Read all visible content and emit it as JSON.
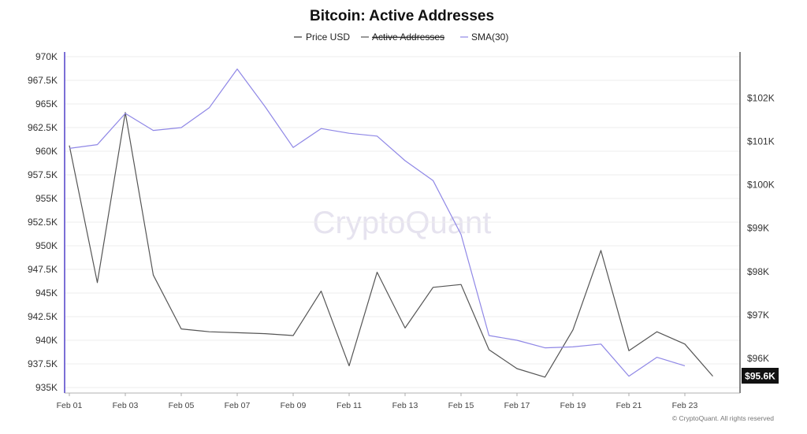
{
  "chart_data": {
    "type": "line",
    "title": "Bitcoin: Active Addresses",
    "legend": [
      "Price USD",
      "Active Addresses",
      "SMA(30)"
    ],
    "x_labels": [
      "Feb 01",
      "Feb 03",
      "Feb 05",
      "Feb 07",
      "Feb 09",
      "Feb 11",
      "Feb 13",
      "Feb 15",
      "Feb 17",
      "Feb 19",
      "Feb 21",
      "Feb 23"
    ],
    "left_axis": {
      "ylim": [
        935000,
        970000
      ],
      "ticks": [
        935000,
        937500,
        940000,
        942500,
        945000,
        947500,
        950000,
        952500,
        955000,
        957500,
        960000,
        962500,
        965000,
        967500,
        970000
      ],
      "tick_labels": [
        "935K",
        "937.5K",
        "940K",
        "942.5K",
        "945K",
        "947.5K",
        "950K",
        "952.5K",
        "955K",
        "957.5K",
        "960K",
        "962.5K",
        "965K",
        "967.5K",
        "970K"
      ]
    },
    "right_axis": {
      "ylim": [
        95330,
        102950
      ],
      "ticks": [
        96000,
        97000,
        98000,
        99000,
        100000,
        101000,
        102000
      ],
      "tick_labels": [
        "$96K",
        "$97K",
        "$98K",
        "$99K",
        "$100K",
        "$101K",
        "$102K"
      ],
      "last_value_label": "$95.6K"
    },
    "series": [
      {
        "name": "Active Addresses",
        "axis": "left",
        "color": "#555555",
        "x": [
          1,
          2,
          3,
          4,
          5,
          6,
          7,
          8,
          9,
          10,
          11,
          12,
          13,
          14,
          15,
          16,
          17,
          18,
          19,
          20,
          21,
          22,
          23,
          24
        ],
        "values": [
          960600,
          946100,
          964100,
          946900,
          941200,
          940900,
          940800,
          940700,
          940500,
          945200,
          937300,
          947200,
          941300,
          945600,
          945900,
          939000,
          937000,
          936100,
          941100,
          949500,
          938900,
          940900,
          939600,
          936200
        ]
      },
      {
        "name": "SMA(30)",
        "axis": "left",
        "color": "#8f87e6",
        "x": [
          1,
          2,
          3,
          4,
          5,
          6,
          7,
          8,
          9,
          10,
          11,
          12,
          13,
          14,
          15,
          16,
          17,
          18,
          19,
          20,
          21,
          22,
          23
        ],
        "values": [
          960300,
          960700,
          964000,
          962200,
          962500,
          964600,
          968700,
          964700,
          960400,
          962400,
          961900,
          961600,
          959000,
          956900,
          951200,
          940500,
          940000,
          939200,
          939300,
          939600,
          936200,
          938200,
          937300
        ]
      }
    ],
    "watermark": "CryptoQuant",
    "footer": "© CryptoQuant. All rights reserved"
  }
}
